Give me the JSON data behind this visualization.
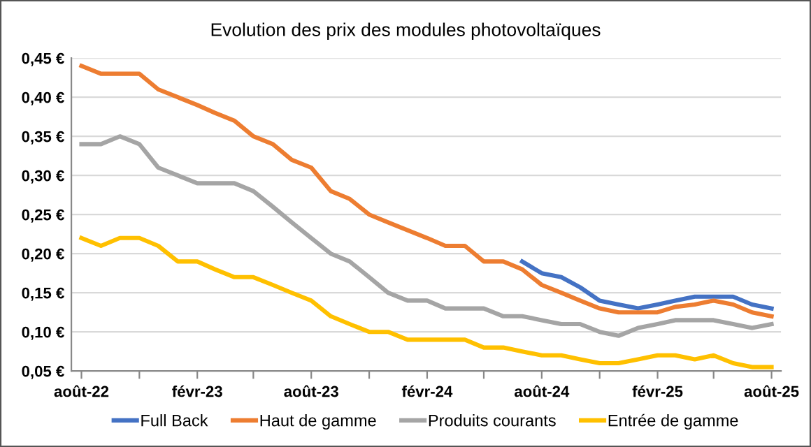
{
  "chart_data": {
    "type": "line",
    "title": "Evolution des prix des modules photovoltaïques",
    "x": [
      "2022-08",
      "2022-09",
      "2022-10",
      "2022-11",
      "2022-12",
      "2023-01",
      "2023-02",
      "2023-03",
      "2023-04",
      "2023-05",
      "2023-06",
      "2023-07",
      "2023-08",
      "2023-09",
      "2023-10",
      "2023-11",
      "2023-12",
      "2024-01",
      "2024-02",
      "2024-03",
      "2024-04",
      "2024-05",
      "2024-06",
      "2024-07",
      "2024-08",
      "2024-09",
      "2024-10",
      "2024-11",
      "2024-12",
      "2025-01",
      "2025-02",
      "2025-03",
      "2025-04",
      "2025-05",
      "2025-06",
      "2025-07",
      "2025-08"
    ],
    "series": [
      {
        "name": "Full Back",
        "color": "#4472c4",
        "values": [
          null,
          null,
          null,
          null,
          null,
          null,
          null,
          null,
          null,
          null,
          null,
          null,
          null,
          null,
          null,
          null,
          null,
          null,
          null,
          null,
          null,
          null,
          null,
          0.19,
          0.175,
          0.17,
          0.157,
          0.14,
          0.135,
          0.13,
          0.135,
          0.14,
          0.145,
          0.145,
          0.145,
          0.135,
          0.13
        ]
      },
      {
        "name": "Haut de gamme",
        "color": "#ed7d31",
        "values": [
          0.44,
          0.43,
          0.43,
          0.43,
          0.41,
          0.4,
          0.39,
          0.38,
          0.37,
          0.35,
          0.34,
          0.32,
          0.31,
          0.28,
          0.27,
          0.25,
          0.24,
          0.23,
          0.22,
          0.21,
          0.21,
          0.19,
          0.19,
          0.18,
          0.16,
          0.15,
          0.14,
          0.13,
          0.125,
          0.125,
          0.125,
          0.132,
          0.135,
          0.14,
          0.135,
          0.125,
          0.12
        ]
      },
      {
        "name": "Produits courants",
        "color": "#a5a5a5",
        "values": [
          0.34,
          0.34,
          0.35,
          0.34,
          0.31,
          0.3,
          0.29,
          0.29,
          0.29,
          0.28,
          0.26,
          0.24,
          0.22,
          0.2,
          0.19,
          0.17,
          0.15,
          0.14,
          0.14,
          0.13,
          0.13,
          0.13,
          0.12,
          0.12,
          0.115,
          0.11,
          0.11,
          0.1,
          0.095,
          0.105,
          0.11,
          0.115,
          0.115,
          0.115,
          0.11,
          0.105,
          0.11
        ]
      },
      {
        "name": "Entrée de gamme",
        "color": "#ffc000",
        "values": [
          0.22,
          0.21,
          0.22,
          0.22,
          0.21,
          0.19,
          0.19,
          0.18,
          0.17,
          0.17,
          0.16,
          0.15,
          0.14,
          0.12,
          0.11,
          0.1,
          0.1,
          0.09,
          0.09,
          0.09,
          0.09,
          0.08,
          0.08,
          0.075,
          0.07,
          0.07,
          0.065,
          0.06,
          0.06,
          0.065,
          0.07,
          0.07,
          0.065,
          0.07,
          0.06,
          0.055,
          0.055
        ]
      }
    ],
    "xlim": [
      "2022-07-16",
      "2025-08-16"
    ],
    "xticks": [
      {
        "value": "2022-08",
        "label": "août-22"
      },
      {
        "value": "2022-11",
        "label": null
      },
      {
        "value": "2023-02",
        "label": "févr-23"
      },
      {
        "value": "2023-05",
        "label": null
      },
      {
        "value": "2023-08",
        "label": "août-23"
      },
      {
        "value": "2023-11",
        "label": null
      },
      {
        "value": "2024-02",
        "label": "févr-24"
      },
      {
        "value": "2024-05",
        "label": null
      },
      {
        "value": "2024-08",
        "label": "août-24"
      },
      {
        "value": "2024-11",
        "label": null
      },
      {
        "value": "2025-02",
        "label": "févr-25"
      },
      {
        "value": "2025-05",
        "label": null
      },
      {
        "value": "2025-08",
        "label": "août-25"
      }
    ],
    "ylim": [
      0.05,
      0.45
    ],
    "yticks": [
      {
        "value": 0.05,
        "label": "0,05 €"
      },
      {
        "value": 0.1,
        "label": "0,10 €"
      },
      {
        "value": 0.15,
        "label": "0,15 €"
      },
      {
        "value": 0.2,
        "label": "0,20 €"
      },
      {
        "value": 0.25,
        "label": "0,25 €"
      },
      {
        "value": 0.3,
        "label": "0,30 €"
      },
      {
        "value": 0.35,
        "label": "0,35 €"
      },
      {
        "value": 0.4,
        "label": "0,40 €"
      },
      {
        "value": 0.45,
        "label": "0,45 €"
      }
    ],
    "grid": "y",
    "legend": "bottom",
    "marker": "none",
    "line_style": "solid"
  }
}
